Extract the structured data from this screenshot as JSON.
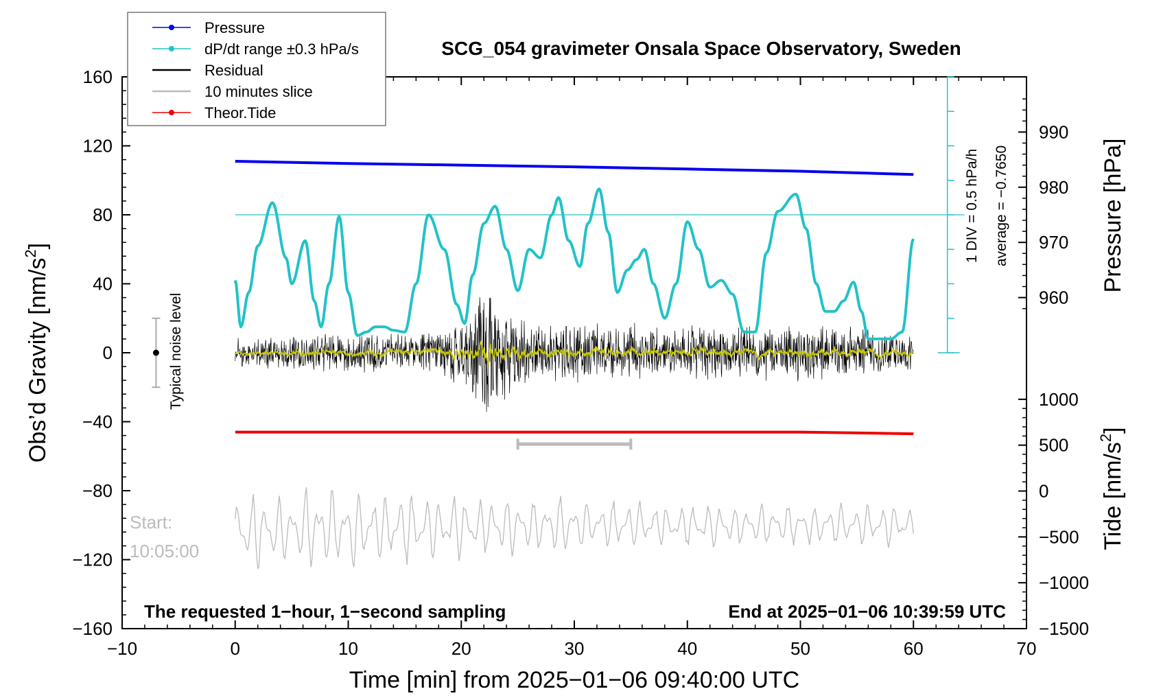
{
  "chart_data": {
    "type": "line",
    "title": "SCG_054 gravimeter Onsala Space Observatory, Sweden",
    "xlabel": "Time [min] from 2025−01−06 09:40:00 UTC",
    "ylabel_left": "Obs’d Gravity [nm/s²]",
    "ylabel_left_main": "Obs’d Gravity [nm/s",
    "ylabel_left_sup": "2",
    "ylabel_left_close": "]",
    "ylabel_pressure": "Pressure [hPa]",
    "ylabel_tide": "Tide [nm/s²]",
    "ylabel_tide_main": "Tide [nm/s",
    "ylabel_tide_sup": "2",
    "ylabel_tide_close": "]",
    "xlim": [
      -10,
      70
    ],
    "ylim_left": [
      -160,
      160
    ],
    "x_ticks": [
      -10,
      0,
      10,
      20,
      30,
      40,
      50,
      60,
      70
    ],
    "x_tick_labels": [
      "−10",
      "0",
      "10",
      "20",
      "30",
      "40",
      "50",
      "60",
      "70"
    ],
    "y_ticks_left": [
      160,
      120,
      80,
      40,
      0,
      -40,
      -80,
      -120,
      -160
    ],
    "y_tick_labels_left": [
      "160",
      "120",
      "80",
      "40",
      "0",
      "−40",
      "−80",
      "−120",
      "−160"
    ],
    "pressure_axis": {
      "ticks": [
        990,
        980,
        970,
        960
      ],
      "tick_labels": [
        "990",
        "980",
        "970",
        "960"
      ],
      "map": {
        "value_a": 990,
        "gravity_a": 128,
        "value_b": 960,
        "gravity_b": 32
      }
    },
    "tide_axis": {
      "ticks": [
        1000,
        500,
        0,
        -500,
        -1000,
        -1500
      ],
      "tick_labels": [
        "1000",
        "500",
        "0",
        "−500",
        "−1000",
        "−1500"
      ],
      "map": {
        "value_a": 1000,
        "gravity_a": -27,
        "value_b": -1500,
        "gravity_b": -160
      }
    },
    "legend": {
      "position": "top-left",
      "entries": [
        {
          "label": "Pressure",
          "color": "#0000ee",
          "marker": true
        },
        {
          "label": "dP/dt range ±0.3 hPa/s",
          "color": "#22c2c8",
          "marker": true
        },
        {
          "label": "Residual",
          "color": "#000000",
          "marker": false
        },
        {
          "label": "10 minutes slice",
          "color": "#bbbbbb",
          "marker": false
        },
        {
          "label": "Theor.Tide",
          "color": "#ee0000",
          "marker": true
        }
      ]
    },
    "annotations": {
      "noise_label": "Typical noise level",
      "noise_bar": {
        "x": -7,
        "center": 0,
        "half_range": 20
      },
      "start_label": "Start:",
      "start_time": "10:05:00",
      "bottom_left": "The requested 1−hour, 1−second sampling",
      "bottom_right": "End at 2025−01−06 10:39:59 UTC",
      "div_label": "1 DIV = 0.5 hPa/h",
      "average_label": "average = −0.7650",
      "slice_range_min": [
        25,
        35
      ],
      "slice_bar_gravity": -53,
      "ref_line_gravity": 80
    },
    "series": [
      {
        "name": "Pressure",
        "color": "#0000ee",
        "unit": "hPa",
        "x": [
          0,
          10,
          20,
          30,
          40,
          50,
          60
        ],
        "values": [
          984.7,
          984.3,
          984.0,
          983.7,
          983.3,
          982.9,
          982.3
        ]
      },
      {
        "name": "dP/dt",
        "color": "#22c2c8",
        "unit": "nm/s² (plot scale)",
        "x": [
          0,
          0.5,
          1.2,
          2,
          3.3,
          4.5,
          5,
          6.2,
          7,
          7.6,
          8.3,
          9.2,
          10,
          10.8,
          11.6,
          12.4,
          13.2,
          14,
          15,
          16,
          17.1,
          18.5,
          19.6,
          20.3,
          21,
          22,
          23,
          24,
          25,
          26,
          27,
          28,
          28.6,
          29.5,
          30.5,
          31.2,
          32.2,
          33,
          33.8,
          34.7,
          35.5,
          36.2,
          37,
          38,
          39,
          40,
          41,
          42,
          43,
          44,
          45,
          46,
          47,
          48,
          49.6,
          50.5,
          51.4,
          52.2,
          53,
          53.8,
          54.7,
          55.4,
          56,
          57,
          58,
          59,
          60
        ],
        "values": [
          42,
          15,
          35,
          62,
          87,
          55,
          40,
          65,
          30,
          15,
          40,
          79,
          35,
          10,
          12,
          15,
          15,
          13,
          12,
          40,
          80,
          60,
          28,
          17,
          45,
          75,
          85,
          60,
          36,
          60,
          55,
          80,
          90,
          65,
          50,
          75,
          95,
          70,
          35,
          48,
          54,
          60,
          40,
          20,
          40,
          76,
          60,
          38,
          42,
          34,
          12,
          12,
          58,
          82,
          92,
          72,
          40,
          24,
          24,
          30,
          41,
          24,
          8,
          8,
          8,
          12,
          66
        ]
      },
      {
        "name": "Residual",
        "color": "#000000",
        "unit": "nm/s²",
        "samples_per_min": 60,
        "x": [
          0,
          5,
          10,
          15,
          18,
          20,
          21,
          22,
          23,
          24,
          26,
          30,
          40,
          50,
          55,
          60
        ],
        "amplitude": [
          9,
          11,
          13,
          12,
          15,
          22,
          35,
          40,
          38,
          30,
          20,
          18,
          17,
          18,
          16,
          12
        ]
      },
      {
        "name": "10 minutes slice",
        "color": "#bbbbbb",
        "unit": "nm/s²",
        "window_min": [
          25,
          35
        ],
        "x": [
          0,
          10,
          20,
          30,
          40,
          50,
          60
        ],
        "center": [
          -104,
          -102,
          -101,
          -100,
          -100,
          -100,
          -100
        ],
        "amplitude": [
          26,
          28,
          22,
          18,
          15,
          15,
          13
        ]
      },
      {
        "name": "Theor.Tide",
        "color": "#ee0000",
        "unit": "nm/s²",
        "x": [
          0,
          10,
          20,
          30,
          40,
          50,
          60
        ],
        "values": [
          -46,
          -46,
          -46,
          -46,
          -46,
          -46,
          -47
        ]
      }
    ]
  },
  "colors": {
    "pressure": "#0000ee",
    "dpdt": "#22c2c8",
    "residual": "#000000",
    "smooth": "#c8c800",
    "slice": "#bbbbbb",
    "tide": "#ee0000"
  }
}
